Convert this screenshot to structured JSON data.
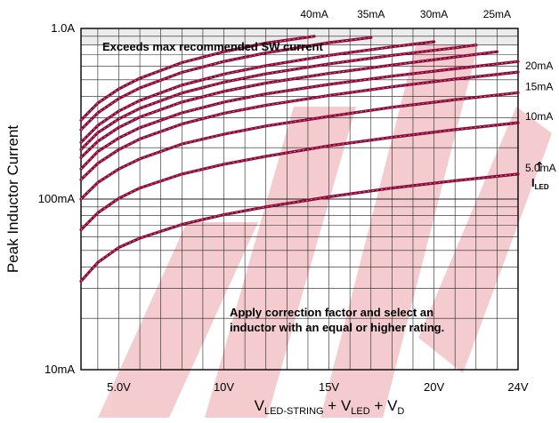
{
  "chart_data": {
    "type": "line",
    "x_scale": "linear",
    "y_scale": "log",
    "xlim": [
      3.2,
      24
    ],
    "ylim": [
      0.01,
      1.0
    ],
    "xticks": [
      {
        "value": 5,
        "label": "5.0V"
      },
      {
        "value": 10,
        "label": "10V"
      },
      {
        "value": 15,
        "label": "15V"
      },
      {
        "value": 20,
        "label": "20V"
      },
      {
        "value": 24,
        "label": "24V"
      }
    ],
    "yticks": [
      {
        "value": 1.0,
        "label": "1.0A"
      },
      {
        "value": 0.1,
        "label": "100mA"
      },
      {
        "value": 0.01,
        "label": "10mA"
      }
    ],
    "ylabel": "Peak Inductor Current",
    "xlabel": {
      "parts": [
        {
          "text": "V",
          "sub": "LED-STRING"
        },
        {
          "text": " + V",
          "sub": "LED"
        },
        {
          "text": " + V",
          "sub": "D"
        }
      ]
    },
    "grid": true,
    "line_color": "#8b0a3a",
    "shaded_region": {
      "ymin": 0.8,
      "ymax": 1.0,
      "color": "#ececec"
    },
    "annotations": {
      "exceeds": "Exceeds max recommended SW current",
      "correction_line1": "Apply correction factor and select an",
      "correction_line2": "inductor with an equal or higher rating.",
      "iled_symbol": "I",
      "iled_sub": "LED",
      "iled_arrow": "↑"
    },
    "series": [
      {
        "name": "5.0mA",
        "x": [
          3.2,
          4,
          5,
          6,
          8,
          10,
          12,
          15,
          18,
          21,
          24
        ],
        "values": [
          0.033,
          0.0425,
          0.052,
          0.059,
          0.071,
          0.081,
          0.09,
          0.103,
          0.116,
          0.128,
          0.14
        ]
      },
      {
        "name": "10mA",
        "x": [
          3.2,
          4,
          5,
          6,
          8,
          10,
          12,
          15,
          18,
          21,
          24
        ],
        "values": [
          0.066,
          0.083,
          0.101,
          0.116,
          0.14,
          0.16,
          0.178,
          0.205,
          0.23,
          0.255,
          0.28
        ]
      },
      {
        "name": "15mA",
        "x": [
          3.2,
          4,
          5,
          6,
          8,
          10,
          12,
          15,
          18,
          21,
          24
        ],
        "values": [
          0.1,
          0.125,
          0.15,
          0.172,
          0.21,
          0.24,
          0.268,
          0.305,
          0.345,
          0.382,
          0.42
        ]
      },
      {
        "name": "20mA",
        "x": [
          3.2,
          4,
          5,
          6,
          8,
          10,
          12,
          15,
          18,
          21,
          24
        ],
        "values": [
          0.13,
          0.162,
          0.195,
          0.225,
          0.275,
          0.318,
          0.355,
          0.405,
          0.455,
          0.505,
          0.555
        ]
      },
      {
        "name": "",
        "x": [
          3.2,
          4,
          5,
          6,
          8,
          10,
          12,
          15,
          18,
          21,
          24
        ],
        "values": [
          0.15,
          0.19,
          0.228,
          0.262,
          0.32,
          0.37,
          0.413,
          0.47,
          0.525,
          0.58,
          0.64
        ]
      },
      {
        "name": "25mA",
        "x": [
          3.2,
          4,
          5,
          6,
          8,
          10,
          12,
          15,
          18,
          21,
          23
        ],
        "values": [
          0.175,
          0.218,
          0.263,
          0.302,
          0.37,
          0.428,
          0.478,
          0.545,
          0.61,
          0.68,
          0.73
        ]
      },
      {
        "name": "",
        "x": [
          3.2,
          4,
          5,
          6,
          8,
          10,
          12,
          15,
          18,
          21,
          22
        ],
        "values": [
          0.195,
          0.245,
          0.295,
          0.34,
          0.418,
          0.484,
          0.542,
          0.62,
          0.695,
          0.77,
          0.8
        ]
      },
      {
        "name": "30mA",
        "x": [
          3.2,
          4,
          5,
          6,
          8,
          10,
          12,
          15,
          18,
          20
        ],
        "values": [
          0.215,
          0.27,
          0.328,
          0.378,
          0.465,
          0.54,
          0.605,
          0.695,
          0.78,
          0.835
        ]
      },
      {
        "name": "35mA",
        "x": [
          3.2,
          4,
          5,
          6,
          8,
          10,
          12,
          15,
          17
        ],
        "values": [
          0.255,
          0.32,
          0.388,
          0.448,
          0.552,
          0.64,
          0.718,
          0.825,
          0.885
        ]
      },
      {
        "name": "40mA",
        "x": [
          3.2,
          4,
          5,
          6,
          8,
          10,
          12,
          14.3
        ],
        "values": [
          0.29,
          0.365,
          0.442,
          0.51,
          0.63,
          0.73,
          0.82,
          0.9
        ]
      }
    ]
  }
}
